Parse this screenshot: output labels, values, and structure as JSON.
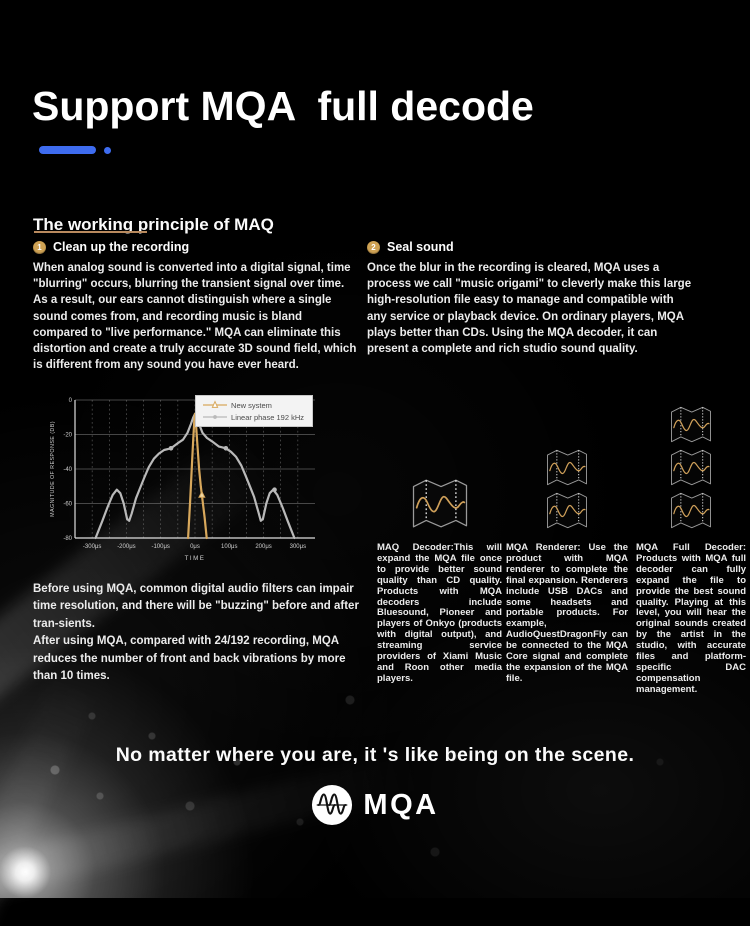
{
  "page": {
    "title": "Support MQA  full decode",
    "section_heading": "The working principle of MAQ",
    "tagline": "No matter where you are, it 's like being on the scene.",
    "logo_text": "MQA"
  },
  "colors": {
    "accent_blue": "#3e6cf0",
    "heading_underline_tan": "#b98a5e",
    "number_badge_gold": "#cfa254",
    "chart_orange": "#d8a85c",
    "chart_gray": "#b9b9b9"
  },
  "principles": [
    {
      "num": "1",
      "heading": "Clean up the recording",
      "body": "When analog sound is converted into a digital signal, time \"blurring\" occurs, blurring the transient signal over time. As a result, our ears cannot distinguish where a single sound comes from, and recording music is bland compared to \"live performance.\" MQA can eliminate this distortion and create a truly accurate 3D sound field, which is different from any sound you have ever heard."
    },
    {
      "num": "2",
      "heading": "Seal sound",
      "body": "Once the blur in the recording is cleared, MQA uses a process we call \"music origami\" to cleverly make this large high-resolution file easy to manage and compatible with any service or playback device. On ordinary players, MQA plays better than CDs. Using the MQA decoder, it can present a complete and rich studio sound quality."
    }
  ],
  "note": {
    "p1": "Before using MQA,  common digital audio filters can impair time resolution, and there will be \"buzzing\" before and after tran-sients.",
    "p2": "After using MQA, compared with 24/192 recording, MQA reduces the number of front and back vibrations by more than 10 times."
  },
  "decoders": [
    {
      "icons": 1,
      "body": "MAQ Decoder:This will expand the MQA file once to provide better sound quality than CD quality. Products with MQA decoders include Bluesound, Pioneer and players of Onkyo (products with digital output), and streaming service providers of Xiami Music and Roon other media players."
    },
    {
      "icons": 2,
      "body": "MQA Renderer: Use the product with MQA renderer to complete the final expansion. Renderers include USB DACs and some headsets and portable products. For example, AudioQuestDragonFly can be connected to the MQA Core signal and complete the expansion of the MQA file."
    },
    {
      "icons": 3,
      "body": "MQA Full Decoder: Products with MQA full decoder can fully expand the file to provide the best sound quality. Playing at this level, you will hear the original sounds created by the artist in the studio, with accurate files and platform-specific DAC compensation management."
    }
  ],
  "chart_data": {
    "type": "line",
    "title": "",
    "xlabel": "TIME",
    "ylabel": "MAGNITUDE OF RESPONSE (DB)",
    "xlim": [
      -350,
      350
    ],
    "ylim": [
      -80,
      0
    ],
    "x_tick_values": [
      -300,
      -200,
      -100,
      0,
      100,
      200,
      300
    ],
    "x_ticks": [
      "-300μs",
      "-200μs",
      "-100μs",
      "0μs",
      "100μs",
      "200μs",
      "300μs"
    ],
    "y_ticks": [
      0,
      -20,
      -40,
      -60,
      -80
    ],
    "grid": true,
    "legend_position": "top-right",
    "series": [
      {
        "name": "New system",
        "color": "#d8a85c",
        "marker": "triangle",
        "points": [
          [
            -20,
            -80
          ],
          [
            -14,
            -58
          ],
          [
            -9,
            -38
          ],
          [
            -5,
            -22
          ],
          [
            -2,
            -12
          ],
          [
            0,
            -8
          ],
          [
            3,
            -14
          ],
          [
            7,
            -26
          ],
          [
            12,
            -40
          ],
          [
            17,
            -50
          ],
          [
            22,
            -58
          ],
          [
            28,
            -68
          ],
          [
            34,
            -80
          ]
        ],
        "marker_points": [
          [
            20,
            -55
          ]
        ]
      },
      {
        "name": "Linear phase 192 kHz",
        "color": "#b9b9b9",
        "marker": "circle",
        "points": [
          [
            -290,
            -80
          ],
          [
            -270,
            -70
          ],
          [
            -255,
            -62
          ],
          [
            -240,
            -55
          ],
          [
            -228,
            -52
          ],
          [
            -218,
            -54
          ],
          [
            -208,
            -60
          ],
          [
            -198,
            -69
          ],
          [
            -192,
            -70
          ],
          [
            -185,
            -66
          ],
          [
            -172,
            -57
          ],
          [
            -160,
            -51
          ],
          [
            -148,
            -45
          ],
          [
            -135,
            -39
          ],
          [
            -120,
            -34
          ],
          [
            -105,
            -31
          ],
          [
            -90,
            -29
          ],
          [
            -70,
            -28
          ],
          [
            -50,
            -25
          ],
          [
            -35,
            -23
          ],
          [
            -22,
            -19
          ],
          [
            -12,
            -14
          ],
          [
            -5,
            -10
          ],
          [
            0,
            -8
          ],
          [
            5,
            -10
          ],
          [
            12,
            -14
          ],
          [
            22,
            -19
          ],
          [
            35,
            -22
          ],
          [
            50,
            -24
          ],
          [
            70,
            -27
          ],
          [
            90,
            -28
          ],
          [
            105,
            -30
          ],
          [
            120,
            -33
          ],
          [
            135,
            -38
          ],
          [
            148,
            -44
          ],
          [
            160,
            -50
          ],
          [
            172,
            -56
          ],
          [
            185,
            -65
          ],
          [
            192,
            -70
          ],
          [
            198,
            -69
          ],
          [
            208,
            -60
          ],
          [
            218,
            -54
          ],
          [
            228,
            -52
          ],
          [
            240,
            -55
          ],
          [
            255,
            -62
          ],
          [
            270,
            -70
          ],
          [
            290,
            -80
          ]
        ],
        "marker_points": [
          [
            -70,
            -28
          ],
          [
            90,
            -28
          ],
          [
            232,
            -52
          ]
        ]
      }
    ]
  }
}
